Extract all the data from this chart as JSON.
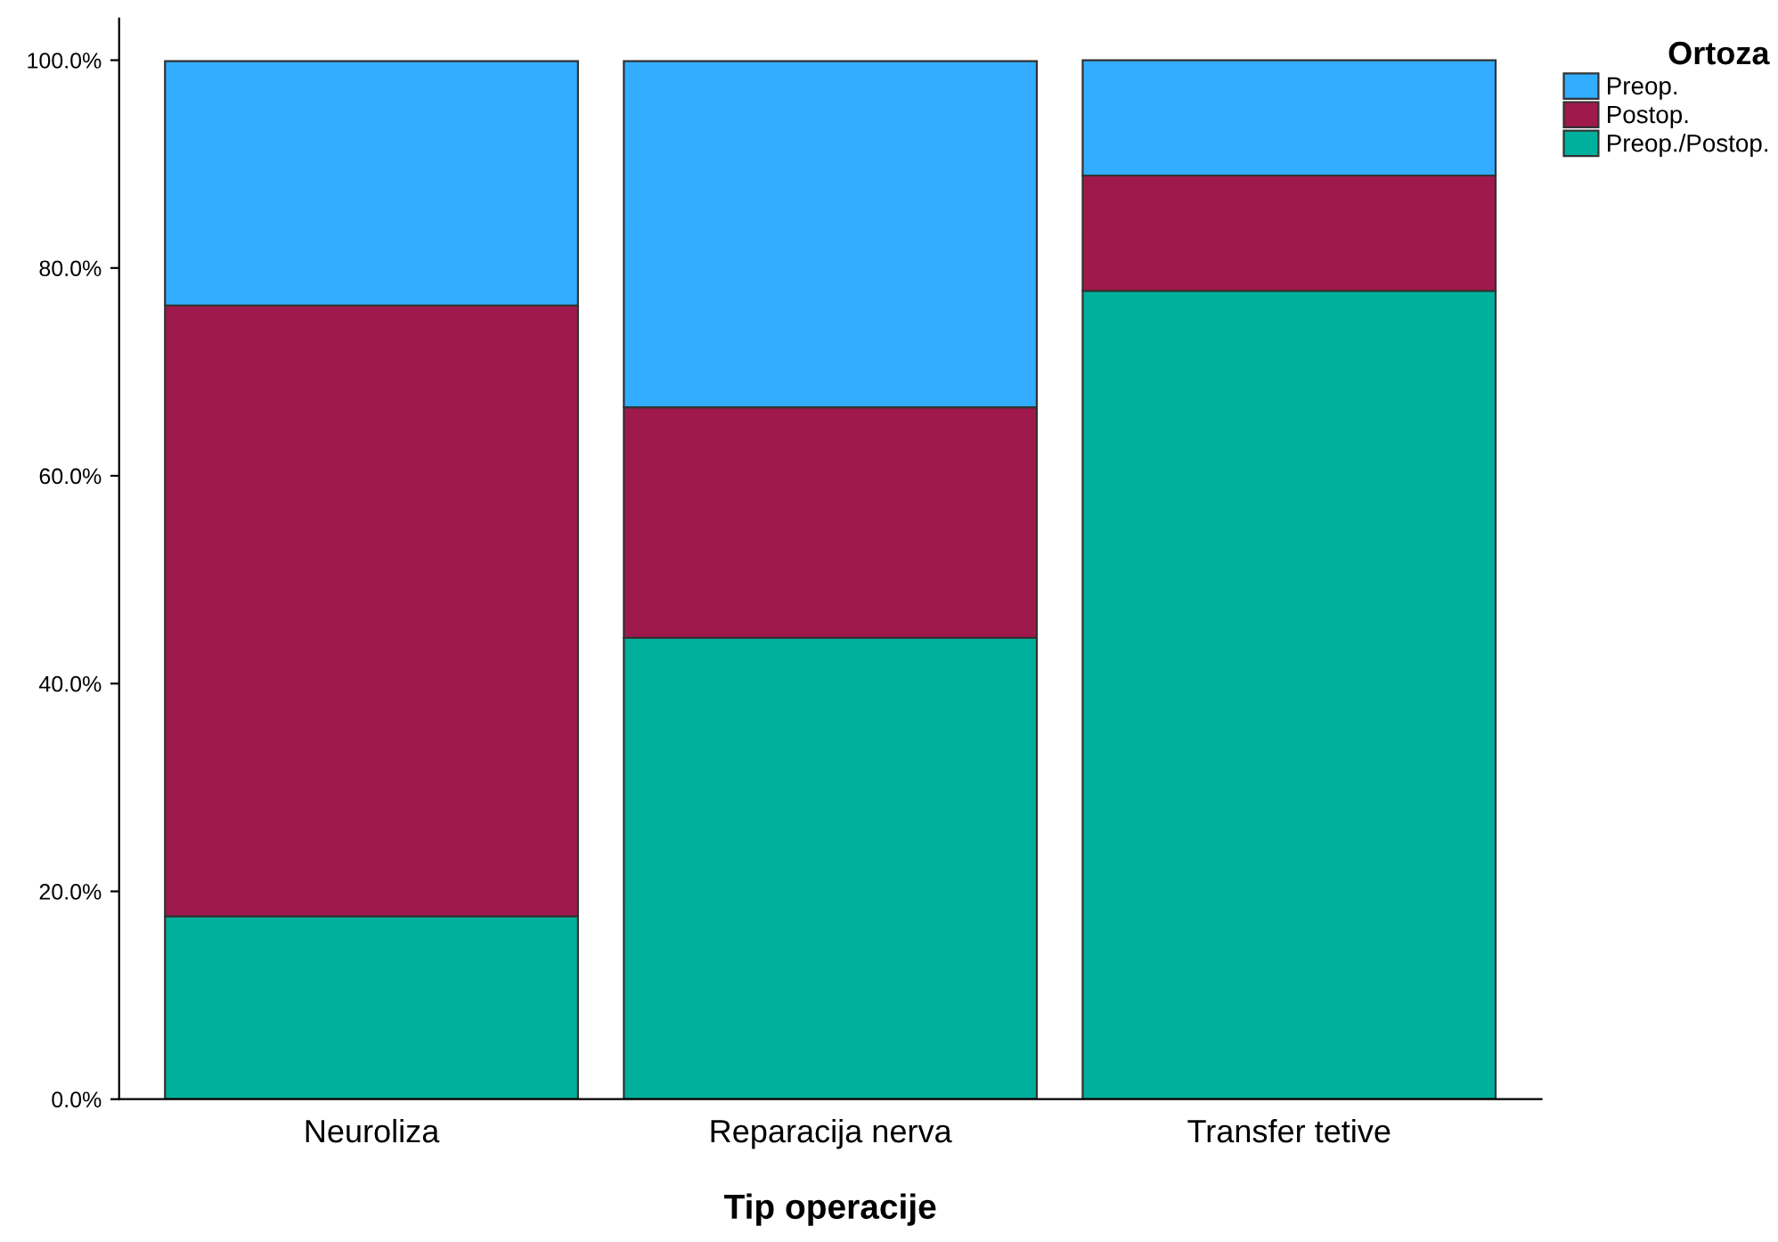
{
  "chart_data": {
    "type": "bar",
    "stacked": true,
    "xlabel": "Tip operacije",
    "legend_title": "Ortoza",
    "legend": "top right",
    "categories": [
      "Neuroliza",
      "Reparacija nerva",
      "Transfer tetive"
    ],
    "series": [
      {
        "name": "Preop./Postop.",
        "color": "#00b09c",
        "values": [
          17.6,
          44.4,
          77.8
        ]
      },
      {
        "name": "Postop.",
        "color": "#a0194c",
        "values": [
          58.8,
          22.2,
          11.1
        ]
      },
      {
        "name": "Preop.",
        "color": "#33adff",
        "values": [
          23.5,
          33.3,
          11.1
        ]
      }
    ],
    "ylim": [
      0,
      104
    ],
    "yticks": [
      {
        "value": 0,
        "label": "0.0%"
      },
      {
        "value": 20,
        "label": "20.0%"
      },
      {
        "value": 40,
        "label": "40.0%"
      },
      {
        "value": 60,
        "label": "60.0%"
      },
      {
        "value": 80,
        "label": "80.0%"
      },
      {
        "value": 100,
        "label": "100.0%"
      }
    ],
    "grid": false
  }
}
